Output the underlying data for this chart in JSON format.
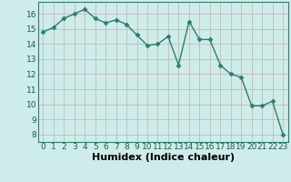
{
  "x": [
    0,
    1,
    2,
    3,
    4,
    5,
    6,
    7,
    8,
    9,
    10,
    11,
    12,
    13,
    14,
    15,
    16,
    17,
    18,
    19,
    20,
    21,
    22,
    23
  ],
  "y": [
    14.8,
    15.1,
    15.7,
    16.0,
    16.3,
    15.7,
    15.4,
    15.6,
    15.3,
    14.6,
    13.9,
    14.0,
    14.5,
    12.6,
    15.5,
    14.3,
    14.3,
    12.6,
    12.0,
    11.8,
    9.9,
    9.9,
    10.2,
    8.0
  ],
  "line_color": "#2e7d6e",
  "marker": "D",
  "marker_size": 2.5,
  "bg_color": "#ceecea",
  "grid_color": "#c0b0b0",
  "xlabel": "Humidex (Indice chaleur)",
  "xlim": [
    -0.5,
    23.5
  ],
  "ylim": [
    7.5,
    16.8
  ],
  "yticks": [
    8,
    9,
    10,
    11,
    12,
    13,
    14,
    15,
    16
  ],
  "xticks": [
    0,
    1,
    2,
    3,
    4,
    5,
    6,
    7,
    8,
    9,
    10,
    11,
    12,
    13,
    14,
    15,
    16,
    17,
    18,
    19,
    20,
    21,
    22,
    23
  ],
  "tick_label_fontsize": 6.5,
  "xlabel_fontsize": 8,
  "line_width": 1.0
}
